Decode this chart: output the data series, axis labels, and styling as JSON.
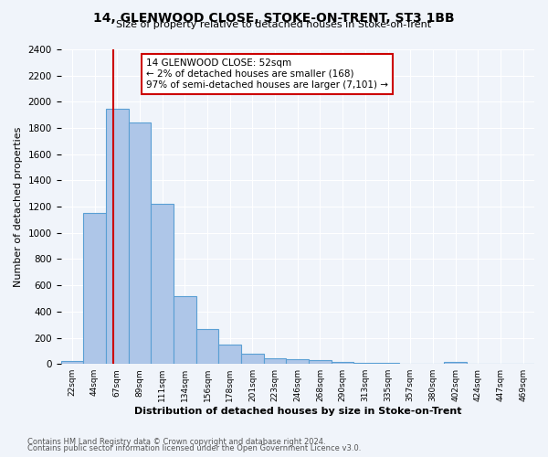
{
  "title": "14, GLENWOOD CLOSE, STOKE-ON-TRENT, ST3 1BB",
  "subtitle": "Size of property relative to detached houses in Stoke-on-Trent",
  "xlabel": "Distribution of detached houses by size in Stoke-on-Trent",
  "ylabel": "Number of detached properties",
  "categories": [
    "22sqm",
    "44sqm",
    "67sqm",
    "89sqm",
    "111sqm",
    "134sqm",
    "156sqm",
    "178sqm",
    "201sqm",
    "223sqm",
    "246sqm",
    "268sqm",
    "290sqm",
    "313sqm",
    "335sqm",
    "357sqm",
    "380sqm",
    "402sqm",
    "424sqm",
    "447sqm",
    "469sqm"
  ],
  "values": [
    25,
    1155,
    1950,
    1840,
    1220,
    520,
    265,
    148,
    78,
    40,
    35,
    28,
    12,
    10,
    5,
    3,
    2,
    18,
    2,
    1,
    1
  ],
  "bar_color": "#aec6e8",
  "bar_edge_color": "#5a9fd4",
  "vline_color": "#cc0000",
  "vline_x": 1.848,
  "annotation_title": "14 GLENWOOD CLOSE: 52sqm",
  "annotation_line1": "← 2% of detached houses are smaller (168)",
  "annotation_line2": "97% of semi-detached houses are larger (7,101) →",
  "annotation_box_color": "#ffffff",
  "annotation_box_edge": "#cc0000",
  "ylim": [
    0,
    2400
  ],
  "yticks": [
    0,
    200,
    400,
    600,
    800,
    1000,
    1200,
    1400,
    1600,
    1800,
    2000,
    2200,
    2400
  ],
  "footnote1": "Contains HM Land Registry data © Crown copyright and database right 2024.",
  "footnote2": "Contains public sector information licensed under the Open Government Licence v3.0.",
  "bg_color": "#f0f4fa",
  "plot_bg_color": "#f0f4fa"
}
